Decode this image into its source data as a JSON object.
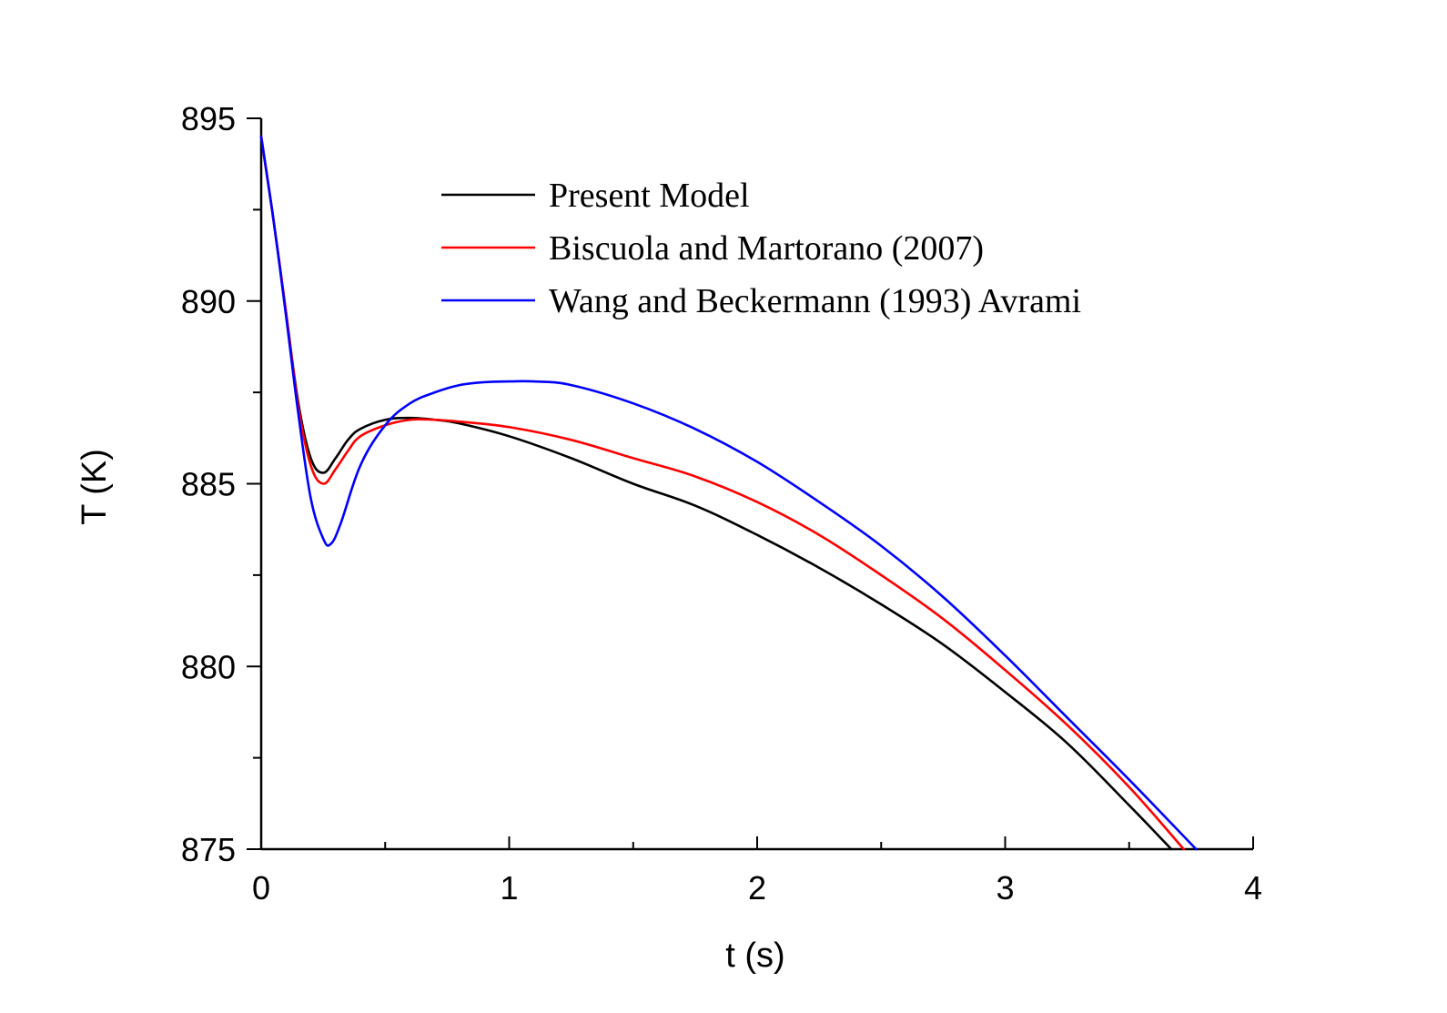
{
  "chart_data": {
    "type": "line",
    "xlabel": "t (s)",
    "ylabel": "T (K)",
    "xlim": [
      0,
      4
    ],
    "ylim": [
      875,
      895
    ],
    "xticks": [
      0,
      1,
      2,
      3,
      4
    ],
    "xtick_labels": [
      "0",
      "1",
      "2",
      "3",
      "4"
    ],
    "xminor": 0.5,
    "yticks": [
      875,
      880,
      885,
      890,
      895
    ],
    "ytick_labels": [
      "875",
      "880",
      "885",
      "890",
      "895"
    ],
    "yminor": 2.5,
    "grid": false,
    "legend_position": "top-center",
    "series": [
      {
        "name": "Present Model",
        "color": "#000000",
        "x": [
          0,
          0.05,
          0.1,
          0.15,
          0.2,
          0.25,
          0.3,
          0.35,
          0.4,
          0.5,
          0.6,
          0.7,
          0.8,
          1.0,
          1.25,
          1.5,
          1.75,
          2.0,
          2.25,
          2.5,
          2.75,
          3.0,
          3.25,
          3.5,
          3.67
        ],
        "y": [
          894.5,
          892.2,
          889.7,
          887.2,
          885.7,
          885.3,
          885.7,
          886.2,
          886.5,
          886.75,
          886.8,
          886.75,
          886.65,
          886.3,
          885.7,
          885.0,
          884.4,
          883.6,
          882.7,
          881.7,
          880.6,
          879.3,
          877.9,
          876.2,
          875.0
        ]
      },
      {
        "name": "Biscuola and Martorano (2007)",
        "color": "#ff0000",
        "x": [
          0,
          0.05,
          0.1,
          0.15,
          0.2,
          0.25,
          0.3,
          0.35,
          0.4,
          0.5,
          0.6,
          0.7,
          0.8,
          1.0,
          1.25,
          1.5,
          1.75,
          2.0,
          2.25,
          2.5,
          2.75,
          3.0,
          3.25,
          3.5,
          3.72
        ],
        "y": [
          894.5,
          892.2,
          889.7,
          887.1,
          885.5,
          885.0,
          885.4,
          885.9,
          886.3,
          886.6,
          886.75,
          886.75,
          886.7,
          886.55,
          886.2,
          885.7,
          885.2,
          884.5,
          883.6,
          882.5,
          881.3,
          879.9,
          878.4,
          876.7,
          875.0
        ]
      },
      {
        "name": "Wang and Beckermann (1993) Avrami",
        "color": "#0000ff",
        "x": [
          0,
          0.05,
          0.1,
          0.15,
          0.2,
          0.25,
          0.28,
          0.32,
          0.4,
          0.5,
          0.6,
          0.7,
          0.8,
          0.9,
          1.0,
          1.1,
          1.25,
          1.5,
          1.75,
          2.0,
          2.25,
          2.5,
          2.75,
          3.0,
          3.25,
          3.5,
          3.77
        ],
        "y": [
          894.5,
          892.2,
          889.6,
          886.9,
          884.6,
          883.5,
          883.35,
          883.9,
          885.5,
          886.6,
          887.2,
          887.5,
          887.7,
          887.78,
          887.8,
          887.8,
          887.7,
          887.2,
          886.5,
          885.6,
          884.5,
          883.3,
          881.9,
          880.3,
          878.6,
          876.9,
          875.0
        ]
      }
    ]
  }
}
